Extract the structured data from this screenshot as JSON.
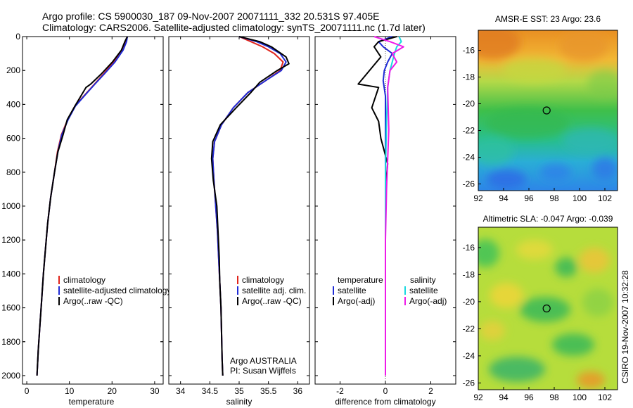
{
  "header": {
    "line1": "Argo profile: CS 5900030_187 09-Nov-2007 20071111_332 20.531S 97.405E",
    "line2": "Climatology: CARS2006. Satellite-adjusted climatology: synTS_20071111.nc (1.7d later)"
  },
  "side_label": "CSIRO 19-Nov-2007 10:32:28",
  "colors": {
    "climatology": "#e0241b",
    "satellite": "#1f2bd6",
    "argo": "#000000",
    "sat_salinity": "#18d8e0",
    "argo_salinity": "#ee1ae8"
  },
  "chart_data": [
    {
      "type": "line",
      "xlabel": "temperature",
      "ylabel": "",
      "xlim": [
        -1,
        32
      ],
      "ylim": [
        2050,
        0
      ],
      "xticks": [
        0,
        10,
        20,
        30
      ],
      "yticks": [
        0,
        200,
        400,
        600,
        800,
        1000,
        1200,
        1400,
        1600,
        1800,
        2000
      ],
      "legend": [
        "climatology",
        "satellite-adjusted climatology",
        "Argo(..raw -QC)"
      ],
      "series": [
        {
          "name": "climatology",
          "color": "#e0241b",
          "x": [
            23.6,
            23.3,
            22.4,
            20.4,
            18.0,
            15.9,
            13.4,
            11.3,
            9.6,
            8.1,
            7.2,
            6.5,
            5.6,
            4.9,
            4.4,
            3.9,
            3.5,
            3.1,
            2.7,
            2.4
          ],
          "y": [
            0,
            30,
            80,
            150,
            220,
            280,
            350,
            410,
            490,
            580,
            680,
            800,
            950,
            1100,
            1250,
            1400,
            1550,
            1700,
            1850,
            2000
          ]
        },
        {
          "name": "satellite-adjusted climatology",
          "color": "#1f2bd6",
          "x": [
            23.6,
            23.4,
            22.6,
            20.7,
            18.2,
            16.0,
            13.5,
            11.4,
            9.7,
            8.2,
            7.3,
            6.5,
            5.6,
            4.9,
            4.4,
            3.9,
            3.5,
            3.1,
            2.7,
            2.4
          ],
          "y": [
            0,
            30,
            80,
            150,
            220,
            280,
            350,
            410,
            490,
            580,
            680,
            800,
            950,
            1100,
            1250,
            1400,
            1550,
            1700,
            1850,
            2000
          ]
        },
        {
          "name": "Argo(..raw -QC)",
          "color": "#000000",
          "x": [
            23.6,
            23.0,
            22.2,
            20.1,
            17.5,
            15.0,
            13.9,
            11.3,
            9.5,
            8.5,
            7.3,
            6.5,
            5.6,
            4.9,
            4.4,
            3.9,
            3.5,
            3.1,
            2.7,
            2.4
          ],
          "y": [
            0,
            30,
            80,
            150,
            220,
            280,
            300,
            410,
            490,
            580,
            680,
            800,
            950,
            1100,
            1250,
            1400,
            1550,
            1700,
            1850,
            2000
          ]
        }
      ]
    },
    {
      "type": "line",
      "xlabel": "salinity",
      "xlim": [
        33.8,
        36.2
      ],
      "ylim": [
        2050,
        0
      ],
      "xticks": [
        34,
        34.5,
        35,
        35.5,
        36
      ],
      "legend": [
        "climatology",
        "satellite adj. clim.",
        "Argo(..raw -QC)"
      ],
      "annotation": [
        "Argo AUSTRALIA",
        "PI: Susan Wijffels"
      ],
      "series": [
        {
          "name": "climatology",
          "color": "#e0241b",
          "x": [
            35.0,
            35.2,
            35.4,
            35.6,
            35.75,
            35.7,
            35.45,
            35.15,
            34.9,
            34.7,
            34.58,
            34.55,
            34.57,
            34.6,
            34.63,
            34.65,
            34.67,
            34.69,
            34.7,
            34.71,
            34.72
          ],
          "y": [
            0,
            30,
            60,
            100,
            150,
            200,
            260,
            330,
            420,
            520,
            620,
            720,
            850,
            1000,
            1150,
            1300,
            1450,
            1600,
            1750,
            1900,
            2000
          ]
        },
        {
          "name": "satellite adj. clim.",
          "color": "#1f2bd6",
          "x": [
            35.0,
            35.3,
            35.5,
            35.7,
            35.8,
            35.72,
            35.45,
            35.15,
            34.9,
            34.7,
            34.58,
            34.55,
            34.57,
            34.6,
            34.63,
            34.65,
            34.67,
            34.69,
            34.7,
            34.71,
            34.72
          ],
          "y": [
            0,
            30,
            60,
            100,
            150,
            200,
            260,
            330,
            420,
            520,
            620,
            720,
            850,
            1000,
            1150,
            1300,
            1450,
            1600,
            1750,
            1900,
            2000
          ]
        },
        {
          "name": "Argo(..raw -QC)",
          "color": "#000000",
          "x": [
            35.0,
            35.35,
            35.55,
            35.8,
            35.85,
            35.65,
            35.35,
            35.2,
            34.95,
            34.68,
            34.55,
            34.53,
            34.56,
            34.62,
            34.64,
            34.66,
            34.67,
            34.69,
            34.7,
            34.71,
            34.72
          ],
          "y": [
            0,
            30,
            60,
            120,
            160,
            200,
            270,
            330,
            420,
            520,
            620,
            720,
            850,
            1000,
            1150,
            1300,
            1450,
            1600,
            1750,
            1900,
            2000
          ]
        }
      ]
    },
    {
      "type": "line",
      "xlabel": "difference from climatology",
      "xlim": [
        -3.1,
        3.1
      ],
      "ylim": [
        2050,
        0
      ],
      "xticks": [
        -2,
        0,
        2
      ],
      "legend_left": [
        "temperature",
        "satellite",
        "Argo(-adj)"
      ],
      "legend_right": [
        "salinity",
        "satellite",
        "Argo(-adj)"
      ],
      "series": [
        {
          "name": "satellite",
          "color": "#1f2bd6",
          "x": [
            0.3,
            -0.3,
            -0.1,
            0.3,
            0.1,
            -0.05,
            -0.1,
            0.0,
            0.0,
            0.0,
            0.0,
            0.0
          ],
          "y": [
            0,
            30,
            60,
            100,
            150,
            200,
            260,
            350,
            500,
            700,
            1200,
            2000
          ]
        },
        {
          "name": "Argo(-adj)",
          "color": "#000000",
          "x": [
            0.5,
            -0.3,
            -0.5,
            -0.2,
            -1.2,
            -0.3,
            -0.6,
            -0.3,
            -0.2,
            0.1,
            0.0,
            0.0,
            0.0
          ],
          "y": [
            0,
            30,
            60,
            120,
            280,
            300,
            420,
            500,
            600,
            750,
            900,
            1200,
            2000
          ]
        },
        {
          "name": "satellite (salinity)",
          "color": "#18d8e0",
          "x": [
            0.6,
            0.7,
            0.5,
            0.4,
            0.3,
            0.2,
            0.1,
            0.05,
            0.0,
            0.0,
            0.0
          ],
          "y": [
            0,
            30,
            60,
            100,
            150,
            200,
            300,
            500,
            800,
            1200,
            2000
          ]
        },
        {
          "name": "Argo(-adj) (salinity)",
          "color": "#ee1ae8",
          "x": [
            -0.5,
            0.2,
            0.8,
            0.3,
            0.5,
            0.2,
            0.1,
            0.15,
            0.05,
            0.0,
            0.0
          ],
          "y": [
            0,
            30,
            60,
            100,
            150,
            200,
            300,
            550,
            900,
            1200,
            2000
          ]
        }
      ]
    },
    {
      "type": "heatmap",
      "title": "AMSR-E SST: 23 Argo: 23.6",
      "xlim": [
        92,
        103
      ],
      "ylim": [
        -26.5,
        -14.5
      ],
      "xticks": [
        92,
        94,
        96,
        98,
        100,
        102
      ],
      "yticks": [
        -16,
        -18,
        -20,
        -22,
        -24,
        -26
      ],
      "marker": {
        "x": 97.4,
        "y": -20.5
      }
    },
    {
      "type": "heatmap",
      "title": "Altimetric SLA: -0.047 Argo: -0.039",
      "xlim": [
        92,
        103
      ],
      "ylim": [
        -26.5,
        -14.5
      ],
      "xticks": [
        92,
        94,
        96,
        98,
        100,
        102
      ],
      "yticks": [
        -16,
        -18,
        -20,
        -22,
        -24,
        -26
      ],
      "marker": {
        "x": 97.4,
        "y": -20.5
      }
    }
  ]
}
